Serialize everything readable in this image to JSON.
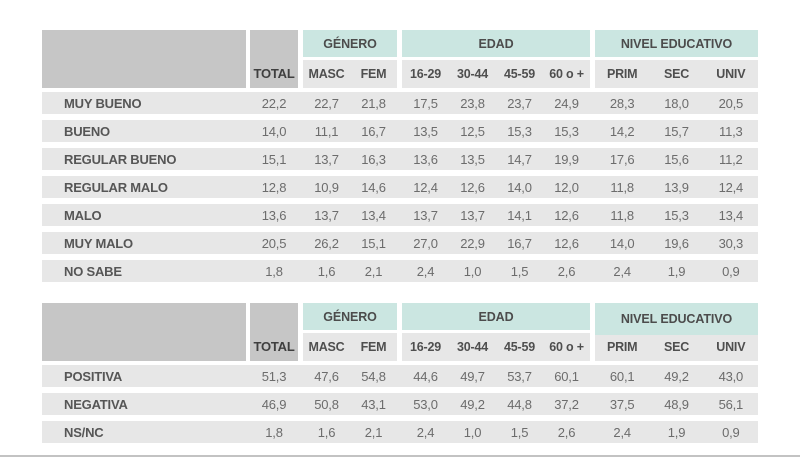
{
  "theme": {
    "accent_mint": "#cbe6e1",
    "header_gray": "#c6c6c6",
    "row_band_gray": "#e7e7e7",
    "label_text": "#565656",
    "value_text": "#6c6c6c",
    "background": "#ffffff"
  },
  "header": {
    "total_label": "TOTAL",
    "groups": [
      {
        "label": "GÉNERO",
        "cols": [
          "MASC",
          "FEM"
        ]
      },
      {
        "label": "EDAD",
        "cols": [
          "16-29",
          "30-44",
          "45-59",
          "60 o +"
        ]
      },
      {
        "label": "NIVEL EDUCATIVO",
        "cols": [
          "PRIM",
          "SEC",
          "UNIV"
        ]
      }
    ]
  },
  "chart_data": [
    {
      "type": "table",
      "columns": [
        "TOTAL",
        "MASC",
        "FEM",
        "16-29",
        "30-44",
        "45-59",
        "60 o +",
        "PRIM",
        "SEC",
        "UNIV"
      ],
      "column_groups": [
        {
          "label": "GÉNERO",
          "span": [
            "MASC",
            "FEM"
          ]
        },
        {
          "label": "EDAD",
          "span": [
            "16-29",
            "30-44",
            "45-59",
            "60 o +"
          ]
        },
        {
          "label": "NIVEL EDUCATIVO",
          "span": [
            "PRIM",
            "SEC",
            "UNIV"
          ]
        }
      ],
      "rows": [
        {
          "label": "MUY BUENO",
          "values": [
            22.2,
            22.7,
            21.8,
            17.5,
            23.8,
            23.7,
            24.9,
            28.3,
            18.0,
            20.5
          ]
        },
        {
          "label": "BUENO",
          "values": [
            14.0,
            11.1,
            16.7,
            13.5,
            12.5,
            15.3,
            15.3,
            14.2,
            15.7,
            11.3
          ]
        },
        {
          "label": "REGULAR BUENO",
          "values": [
            15.1,
            13.7,
            16.3,
            13.6,
            13.5,
            14.7,
            19.9,
            17.6,
            15.6,
            11.2
          ]
        },
        {
          "label": "REGULAR MALO",
          "values": [
            12.8,
            10.9,
            14.6,
            12.4,
            12.6,
            14.0,
            12.0,
            11.8,
            13.9,
            12.4
          ]
        },
        {
          "label": "MALO",
          "values": [
            13.6,
            13.7,
            13.4,
            13.7,
            13.7,
            14.1,
            12.6,
            11.8,
            15.3,
            13.4
          ]
        },
        {
          "label": "MUY MALO",
          "values": [
            20.5,
            26.2,
            15.1,
            27.0,
            22.9,
            16.7,
            12.6,
            14.0,
            19.6,
            30.3
          ]
        },
        {
          "label": "NO SABE",
          "values": [
            1.8,
            1.6,
            2.1,
            2.4,
            1.0,
            1.5,
            2.6,
            2.4,
            1.9,
            0.9
          ]
        }
      ],
      "number_format": "decimal-comma-1"
    },
    {
      "type": "table",
      "columns": [
        "TOTAL",
        "MASC",
        "FEM",
        "16-29",
        "30-44",
        "45-59",
        "60 o +",
        "PRIM",
        "SEC",
        "UNIV"
      ],
      "column_groups": [
        {
          "label": "GÉNERO",
          "span": [
            "MASC",
            "FEM"
          ]
        },
        {
          "label": "EDAD",
          "span": [
            "16-29",
            "30-44",
            "45-59",
            "60 o +"
          ]
        },
        {
          "label": "NIVEL EDUCATIVO",
          "span": [
            "PRIM",
            "SEC",
            "UNIV"
          ]
        }
      ],
      "rows": [
        {
          "label": "POSITIVA",
          "values": [
            51.3,
            47.6,
            54.8,
            44.6,
            49.7,
            53.7,
            60.1,
            60.1,
            49.2,
            43.0
          ]
        },
        {
          "label": "NEGATIVA",
          "values": [
            46.9,
            50.8,
            43.1,
            53.0,
            49.2,
            44.8,
            37.2,
            37.5,
            48.9,
            56.1
          ]
        },
        {
          "label": "NS/NC",
          "values": [
            1.8,
            1.6,
            2.1,
            2.4,
            1.0,
            1.5,
            2.6,
            2.4,
            1.9,
            0.9
          ]
        }
      ],
      "number_format": "decimal-comma-1"
    }
  ]
}
